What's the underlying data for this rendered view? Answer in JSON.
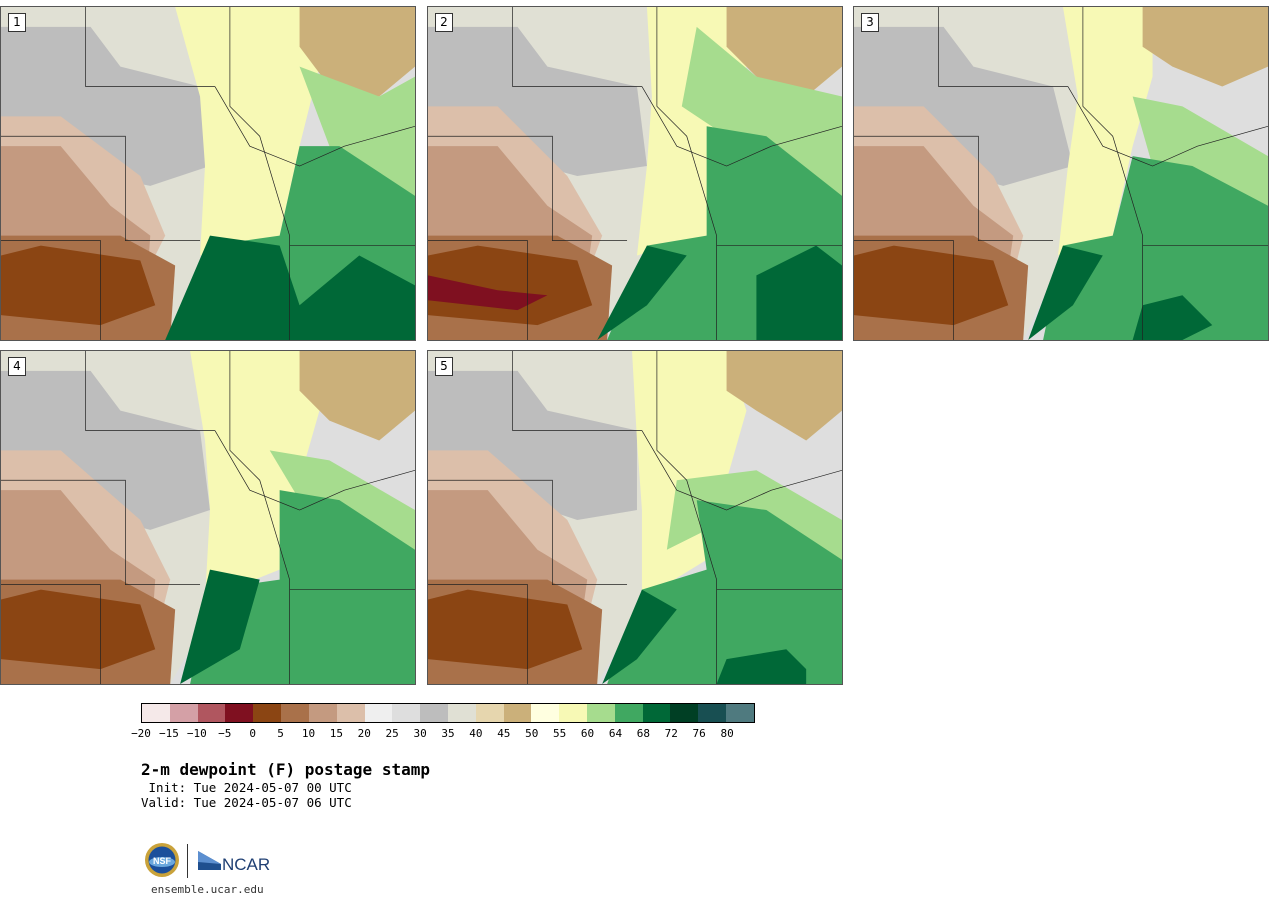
{
  "panels": [
    {
      "label": "1"
    },
    {
      "label": "2"
    },
    {
      "label": "3"
    },
    {
      "label": "4"
    },
    {
      "label": "5"
    }
  ],
  "colorbar": {
    "colors": [
      "#f5e9e9",
      "#d4a0a6",
      "#b0565f",
      "#7f1020",
      "#8b4513",
      "#a9714a",
      "#c49a80",
      "#dcbfaa",
      "#efefef",
      "#dedede",
      "#bdbdbd",
      "#e0e0d4",
      "#e6d6ae",
      "#cbb07a",
      "#ffffe0",
      "#f7f9b5",
      "#a6dc8e",
      "#40a861",
      "#006837",
      "#003f24",
      "#184f52",
      "#4f7a7f"
    ],
    "ticks": [
      "−20",
      "−15",
      "−10",
      "−5",
      "0",
      "5",
      "10",
      "15",
      "20",
      "25",
      "30",
      "35",
      "40",
      "45",
      "50",
      "55",
      "60",
      "64",
      "68",
      "72",
      "76",
      "80"
    ]
  },
  "header": {
    "title": "2-m dewpoint (F) postage stamp",
    "init": " Init: Tue 2024-05-07 00 UTC",
    "valid": "Valid: Tue 2024-05-07 06 UTC"
  },
  "footer": {
    "nsf_logo_text": "NSF",
    "ncar_logo_text": "NCAR",
    "site": "ensemble.ucar.edu"
  }
}
